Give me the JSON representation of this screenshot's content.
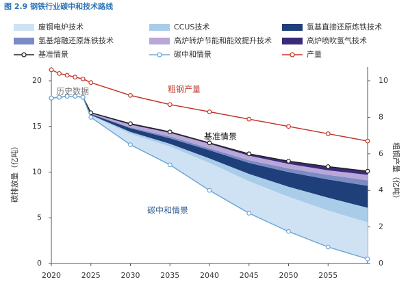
{
  "chart_data": {
    "type": "stacked-area-line",
    "title": "图 2.9  钢铁行业碳中和技术路线",
    "y_label": "碳排放量（亿吨）",
    "y2_label": "粗钢产量（亿吨）",
    "x": [
      2020,
      2021,
      2022,
      2023,
      2024,
      2025,
      2030,
      2035,
      2040,
      2045,
      2050,
      2055,
      2060
    ],
    "xlim": [
      2020,
      2060
    ],
    "xticks": [
      2020,
      2025,
      2030,
      2035,
      2040,
      2045,
      2050,
      2055
    ],
    "ylim": [
      0,
      21.5
    ],
    "yticks": [
      0,
      5,
      10,
      15,
      20
    ],
    "y2lim": [
      0,
      10.75
    ],
    "y2ticks": [
      0,
      2,
      4,
      6,
      8,
      10
    ],
    "stack_base": 7,
    "series": [
      {
        "name": "废钢电炉技术",
        "kind": "area",
        "color": "#cfe2f3",
        "values": [
          null,
          null,
          null,
          null,
          0,
          0.2,
          1.2,
          2.0,
          3.0,
          3.5,
          3.8,
          4.0,
          4.0
        ]
      },
      {
        "name": "CCUS技术",
        "kind": "area",
        "color": "#a9cde9",
        "values": [
          null,
          null,
          null,
          null,
          0,
          0.05,
          0.2,
          0.3,
          0.5,
          0.8,
          1.1,
          1.4,
          1.6
        ]
      },
      {
        "name": "氢基直接还原炼铁技术",
        "kind": "area",
        "color": "#1f3f7a",
        "values": [
          null,
          null,
          null,
          null,
          0,
          0.1,
          0.4,
          0.6,
          0.9,
          1.2,
          1.6,
          2.0,
          2.4
        ]
      },
      {
        "name": "氢基熔融还原炼铁技术",
        "kind": "area",
        "color": "#7b8cc4",
        "values": [
          null,
          null,
          null,
          null,
          0,
          0.05,
          0.1,
          0.2,
          0.2,
          0.3,
          0.4,
          0.5,
          0.6
        ]
      },
      {
        "name": "高炉转炉节能和能效提升技术",
        "kind": "area",
        "color": "#b9a7d8",
        "values": [
          null,
          null,
          null,
          null,
          0,
          0.05,
          0.3,
          0.4,
          0.5,
          0.5,
          0.5,
          0.5,
          0.6
        ]
      },
      {
        "name": "高炉喷吹氢气技术",
        "kind": "area",
        "color": "#3b2a7a",
        "values": [
          null,
          null,
          null,
          null,
          0,
          0.05,
          0.1,
          0.1,
          0.1,
          0.2,
          0.3,
          0.4,
          0.4
        ]
      },
      {
        "name": "基准情景",
        "kind": "line",
        "color": "#222222",
        "values": [
          18.1,
          18.2,
          18.3,
          18.3,
          18.2,
          16.5,
          15.3,
          14.4,
          13.2,
          12.0,
          11.2,
          10.6,
          10.1
        ]
      },
      {
        "name": "碳中和情景",
        "kind": "line",
        "color": "#6fa8d6",
        "values": [
          18.1,
          18.2,
          18.3,
          18.3,
          18.2,
          16.0,
          13.0,
          10.8,
          8.0,
          5.5,
          3.5,
          1.8,
          0.5
        ]
      },
      {
        "name": "产量",
        "kind": "line",
        "axis": "y2",
        "color": "#c0392b",
        "values": [
          10.6,
          10.4,
          10.3,
          10.2,
          10.1,
          9.9,
          9.2,
          8.7,
          8.3,
          7.9,
          7.5,
          7.1,
          6.7
        ]
      }
    ],
    "annotations": [
      "历史数据",
      "粗钢产量",
      "基准情景",
      "碳中和情景"
    ]
  }
}
